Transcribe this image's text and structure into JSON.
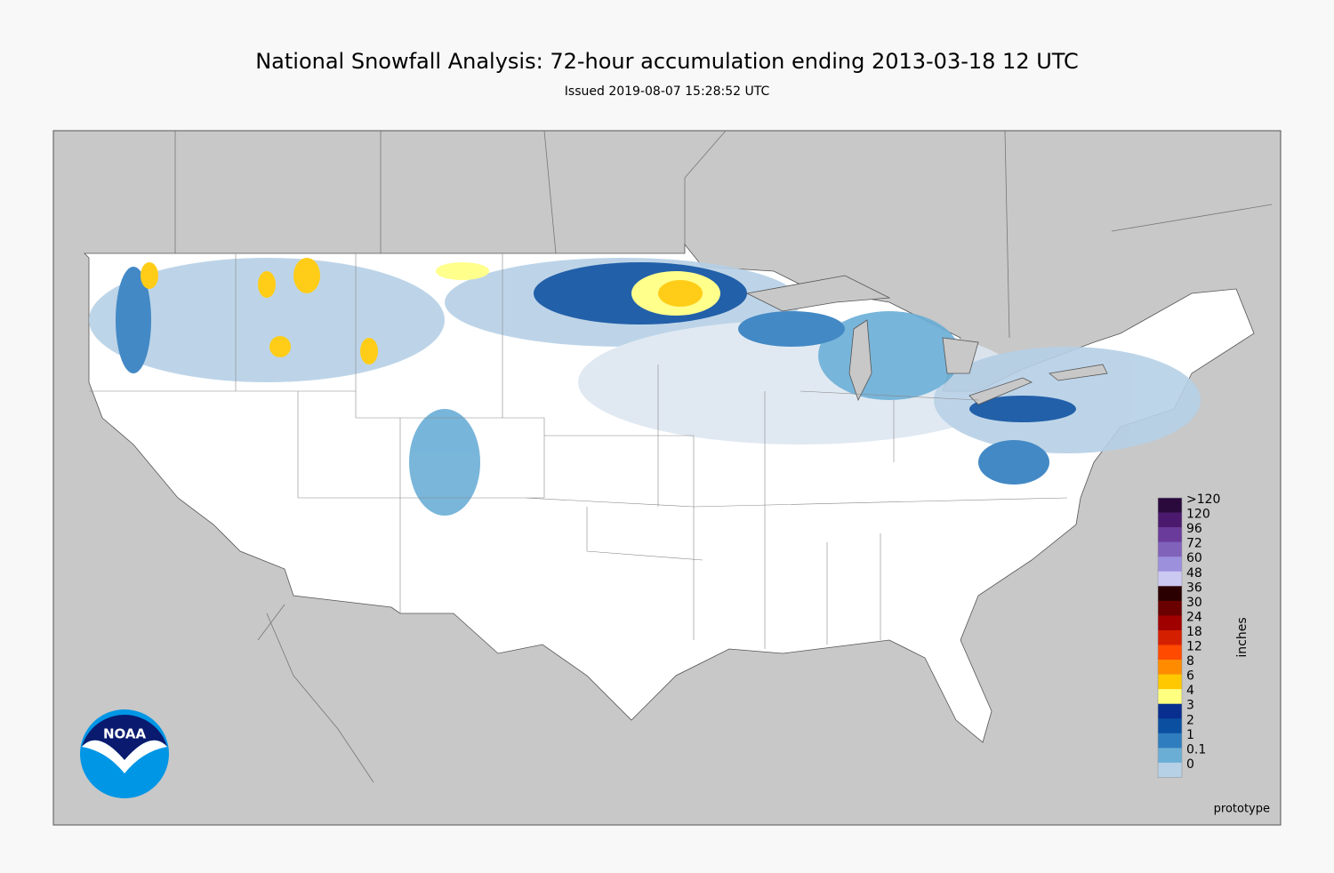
{
  "header": {
    "title": "National Snowfall Analysis: 72-hour accumulation ending 2013-03-18 12 UTC",
    "subtitle": "Issued 2019-08-07 15:28:52 UTC"
  },
  "legend": {
    "title": "inches",
    "entries": [
      {
        "label": ">120",
        "color": "#2a0a3c"
      },
      {
        "label": "120",
        "color": "#4b1a6e"
      },
      {
        "label": "96",
        "color": "#6a3b9a"
      },
      {
        "label": "72",
        "color": "#8062bb"
      },
      {
        "label": "60",
        "color": "#9c90dc"
      },
      {
        "label": "48",
        "color": "#cbc8f2"
      },
      {
        "label": "36",
        "color": "#2a0000"
      },
      {
        "label": "30",
        "color": "#6a0000"
      },
      {
        "label": "24",
        "color": "#a00000"
      },
      {
        "label": "18",
        "color": "#d42000"
      },
      {
        "label": "12",
        "color": "#ff4a00"
      },
      {
        "label": "8",
        "color": "#ff8c00"
      },
      {
        "label": "6",
        "color": "#ffc800"
      },
      {
        "label": "4",
        "color": "#ffff80"
      },
      {
        "label": "3",
        "color": "#082e8f"
      },
      {
        "label": "2",
        "color": "#0b4fa0"
      },
      {
        "label": "1",
        "color": "#2f7dbf"
      },
      {
        "label": "0.1",
        "color": "#6aaed6"
      },
      {
        "label": "0",
        "color": "#b6d0e6"
      }
    ]
  },
  "note": "prototype",
  "logo": {
    "text": "NOAA"
  }
}
